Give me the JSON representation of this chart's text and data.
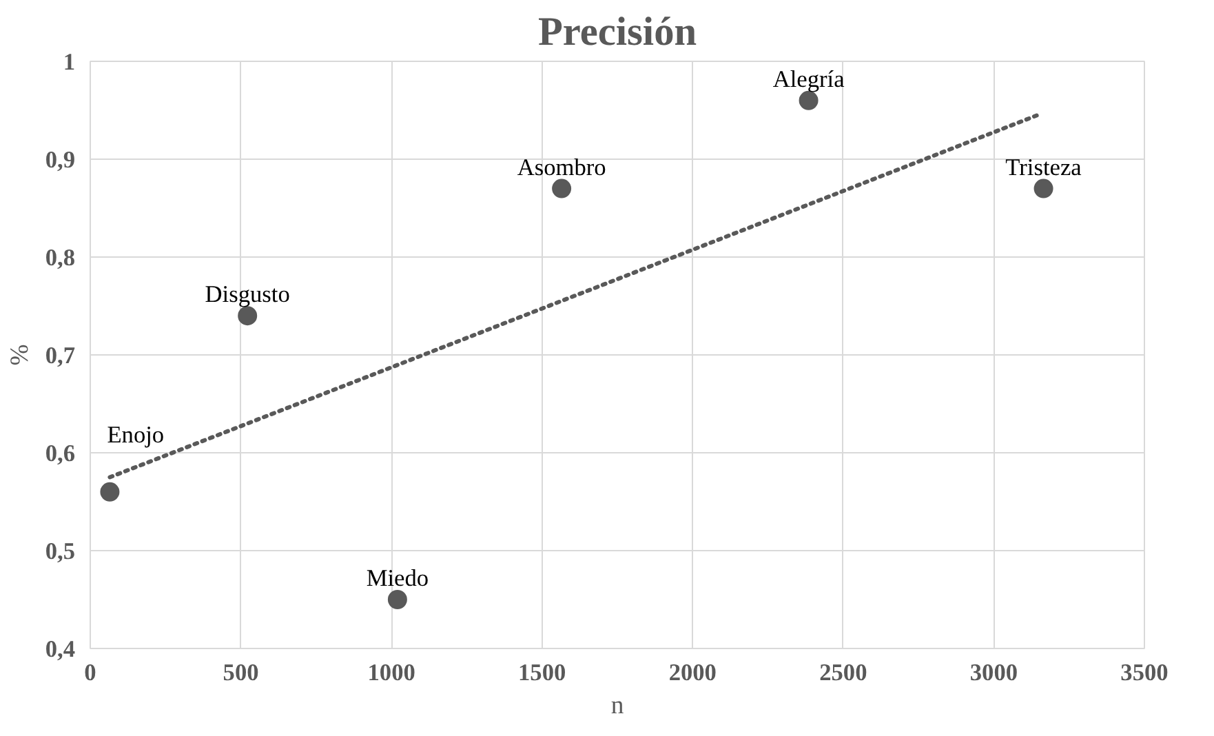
{
  "chart_data": {
    "type": "scatter",
    "title": "Precisión",
    "xlabel": "n",
    "ylabel": "%",
    "xlim": [
      0,
      3500
    ],
    "xticks": [
      0,
      500,
      1000,
      1500,
      2000,
      2500,
      3000,
      3500
    ],
    "ylim": [
      0.4,
      1
    ],
    "yticks": [
      {
        "value": 0.4,
        "label": "0,4"
      },
      {
        "value": 0.5,
        "label": "0,5"
      },
      {
        "value": 0.6,
        "label": "0,6"
      },
      {
        "value": 0.7,
        "label": "0,7"
      },
      {
        "value": 0.8,
        "label": "0,8"
      },
      {
        "value": 0.9,
        "label": "0,9"
      },
      1
    ],
    "grid": true,
    "series": [
      {
        "marker": "circle",
        "color": "#595959",
        "x": [
          65,
          522,
          1020,
          1565,
          2385,
          3165
        ],
        "values": [
          0.56,
          0.74,
          0.45,
          0.87,
          0.96,
          0.87
        ]
      },
      {
        "type": "line",
        "color": "#595959",
        "line_style": "dotted",
        "x": [
          65,
          3145
        ],
        "values": [
          0.575,
          0.945
        ]
      }
    ],
    "annotations": [
      {
        "text": "Enojo",
        "x": 65,
        "y": 0.56
      },
      {
        "text": "Disgusto",
        "x": 522,
        "y": 0.74
      },
      {
        "text": "Miedo",
        "x": 1020,
        "y": 0.45
      },
      {
        "text": "Asombro",
        "x": 1565,
        "y": 0.87
      },
      {
        "text": "Alegría",
        "x": 2385,
        "y": 0.96
      },
      {
        "text": "Tristeza",
        "x": 3165,
        "y": 0.87
      }
    ]
  }
}
